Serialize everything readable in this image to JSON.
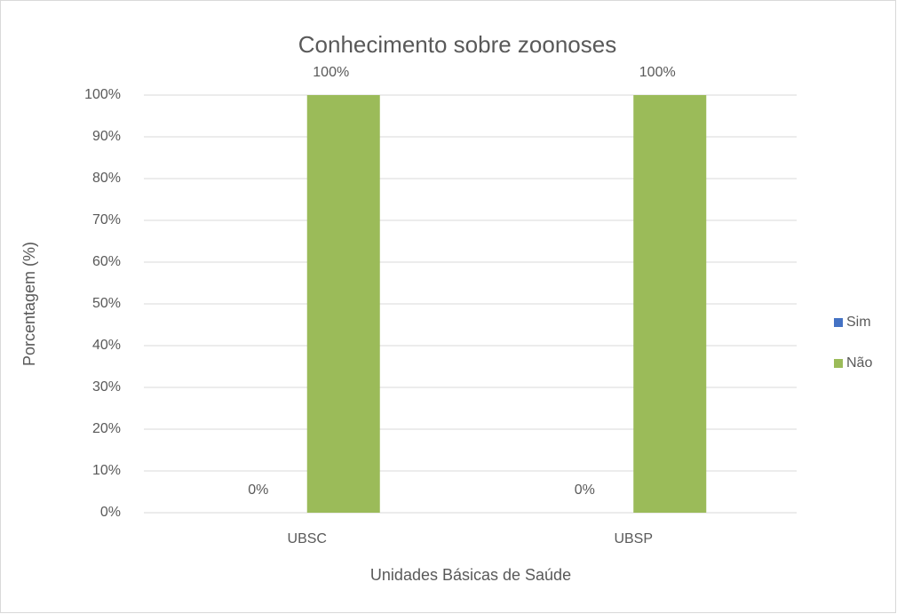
{
  "chart_data": {
    "type": "bar",
    "title": "Conhecimento sobre zoonoses",
    "x_label": "Unidades Básicas de Saúde",
    "y_label": "Porcentagem (%)",
    "categories": [
      "UBSC",
      "UBSP"
    ],
    "series": [
      {
        "name": "Sim",
        "color": "#4472c4",
        "values": [
          0,
          0
        ],
        "value_labels": [
          "0%",
          "0%"
        ]
      },
      {
        "name": "Não",
        "color": "#9bbb59",
        "values": [
          100,
          100
        ],
        "value_labels": [
          "100%",
          "100%"
        ]
      }
    ],
    "ylim": [
      0,
      100
    ],
    "yticks": [
      {
        "value": 0,
        "label": "0%"
      },
      {
        "value": 10,
        "label": "10%"
      },
      {
        "value": 20,
        "label": "20%"
      },
      {
        "value": 30,
        "label": "30%"
      },
      {
        "value": 40,
        "label": "40%"
      },
      {
        "value": 50,
        "label": "50%"
      },
      {
        "value": 60,
        "label": "60%"
      },
      {
        "value": 70,
        "label": "70%"
      },
      {
        "value": 80,
        "label": "80%"
      },
      {
        "value": 90,
        "label": "90%"
      },
      {
        "value": 100,
        "label": "100%"
      }
    ],
    "grid": true,
    "legend": "right"
  }
}
